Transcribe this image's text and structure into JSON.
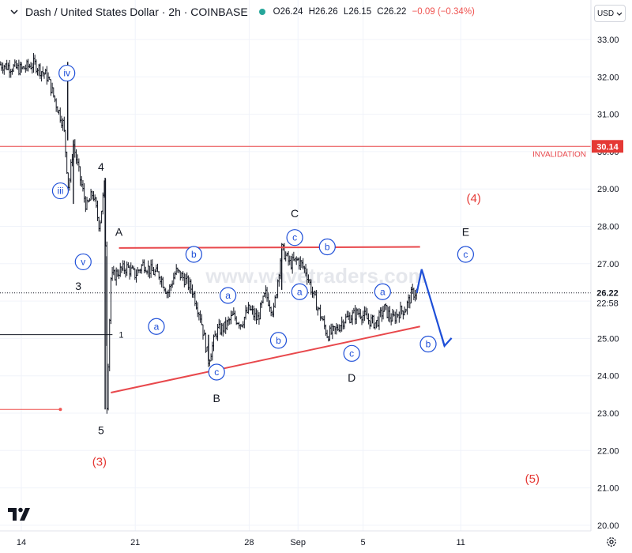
{
  "header": {
    "title": "Dash / United States Dollar · 2h · COINBASE",
    "open_label": "O",
    "open": "26.24",
    "high_label": "H",
    "high": "26.26",
    "low_label": "L",
    "low": "26.15",
    "close_label": "C",
    "close": "26.22",
    "change": "−0.09 (−0.34%)",
    "currency_button": "USD",
    "up_color": "#26a69a",
    "down_color": "#ef5350"
  },
  "watermark": "www.wavetraders.com",
  "icons": {
    "logo": "tradingview-logo-icon",
    "settings": "gear-icon",
    "currency": "chevron-down-icon"
  },
  "chart_data": {
    "type": "candlestick",
    "timeframe": "2h",
    "ylim": [
      20,
      33.5
    ],
    "y_ticks": [
      "33.00",
      "32.00",
      "31.00",
      "30.00",
      "29.00",
      "28.00",
      "27.00",
      "26.00",
      "25.00",
      "24.00",
      "23.00",
      "22.00",
      "21.00",
      "20.00"
    ],
    "x_ticks": [
      {
        "label": "14",
        "x": 0.0
      },
      {
        "label": "21",
        "x": 7.0
      },
      {
        "label": "28",
        "x": 14.0
      },
      {
        "label": "Sep",
        "x": 17.0
      },
      {
        "label": "5",
        "x": 21.0
      },
      {
        "label": "11",
        "x": 27.0
      }
    ],
    "price_path": [
      [
        -1.0,
        32.3
      ],
      [
        0.0,
        32.2
      ],
      [
        0.8,
        32.35
      ],
      [
        1.6,
        32.0
      ],
      [
        2.2,
        31.2
      ],
      [
        2.6,
        30.7
      ],
      [
        2.9,
        29.0
      ],
      [
        3.2,
        30.2
      ],
      [
        3.6,
        29.3
      ],
      [
        4.0,
        28.5
      ],
      [
        4.4,
        28.9
      ],
      [
        4.8,
        28.0
      ],
      [
        5.0,
        28.7
      ],
      [
        5.15,
        29.3
      ],
      [
        5.25,
        23.1
      ],
      [
        5.5,
        26.6
      ],
      [
        6.0,
        26.8
      ],
      [
        6.5,
        26.9
      ],
      [
        7.0,
        26.7
      ],
      [
        7.5,
        27.0
      ],
      [
        8.0,
        26.8
      ],
      [
        8.5,
        26.7
      ],
      [
        9.0,
        26.2
      ],
      [
        9.5,
        26.8
      ],
      [
        10.0,
        26.6
      ],
      [
        10.5,
        26.3
      ],
      [
        11.0,
        25.6
      ],
      [
        11.5,
        24.4
      ],
      [
        12.0,
        25.2
      ],
      [
        12.5,
        25.3
      ],
      [
        13.0,
        25.6
      ],
      [
        13.5,
        25.4
      ],
      [
        14.0,
        25.8
      ],
      [
        14.5,
        25.5
      ],
      [
        15.0,
        26.2
      ],
      [
        15.5,
        25.7
      ],
      [
        16.0,
        27.4
      ],
      [
        16.5,
        27.0
      ],
      [
        17.0,
        27.1
      ],
      [
        17.5,
        26.8
      ],
      [
        17.9,
        26.2
      ],
      [
        18.4,
        25.6
      ],
      [
        18.8,
        25.1
      ],
      [
        19.3,
        25.2
      ],
      [
        19.8,
        25.5
      ],
      [
        20.3,
        25.6
      ],
      [
        20.8,
        25.7
      ],
      [
        21.3,
        25.5
      ],
      [
        21.8,
        25.4
      ],
      [
        22.3,
        25.8
      ],
      [
        22.8,
        25.5
      ],
      [
        23.2,
        25.7
      ],
      [
        23.6,
        25.8
      ],
      [
        24.0,
        26.2
      ],
      [
        24.3,
        26.25
      ]
    ],
    "last_price": "26.22",
    "countdown": "22:58",
    "invalidation": {
      "price": 30.14,
      "label": "INVALIDATION",
      "value_label": "30.14"
    },
    "levels": [
      {
        "name": "level-1-line",
        "price": 25.1,
        "label": "1"
      },
      {
        "name": "low-level-line",
        "price": 23.1
      }
    ],
    "triangle_lines": [
      {
        "name": "upper-trendline",
        "from": [
          6.0,
          27.42
        ],
        "to": [
          24.5,
          27.45
        ]
      },
      {
        "name": "lower-trendline",
        "from": [
          5.5,
          23.55
        ],
        "to": [
          24.5,
          25.32
        ]
      }
    ],
    "forecast_arrow": {
      "from": [
        24.3,
        26.22
      ],
      "peak": [
        24.6,
        26.85
      ],
      "to": [
        26.0,
        24.8
      ]
    },
    "wave_labels": [
      {
        "text": "iv",
        "x": 2.8,
        "y": 32.1,
        "style": "circle"
      },
      {
        "text": "iii",
        "x": 2.4,
        "y": 28.95,
        "style": "circle"
      },
      {
        "text": "v",
        "x": 3.8,
        "y": 27.05,
        "style": "circle"
      },
      {
        "text": "4",
        "x": 4.9,
        "y": 29.6,
        "style": "plain-black"
      },
      {
        "text": "3",
        "x": 3.5,
        "y": 26.4,
        "style": "plain-black"
      },
      {
        "text": "5",
        "x": 4.9,
        "y": 22.55,
        "style": "plain-black"
      },
      {
        "text": "(3)",
        "x": 4.8,
        "y": 21.7,
        "style": "plain-red"
      },
      {
        "text": "A",
        "x": 6.0,
        "y": 27.85,
        "style": "plain-black"
      },
      {
        "text": "a",
        "x": 8.3,
        "y": 25.32,
        "style": "circle"
      },
      {
        "text": "b",
        "x": 10.6,
        "y": 27.25,
        "style": "circle"
      },
      {
        "text": "a",
        "x": 12.7,
        "y": 26.15,
        "style": "circle"
      },
      {
        "text": "c",
        "x": 12.0,
        "y": 24.1,
        "style": "circle"
      },
      {
        "text": "B",
        "x": 12.0,
        "y": 23.4,
        "style": "plain-black"
      },
      {
        "text": "b",
        "x": 15.8,
        "y": 24.95,
        "style": "circle"
      },
      {
        "text": "c",
        "x": 16.8,
        "y": 27.7,
        "style": "circle"
      },
      {
        "text": "C",
        "x": 16.8,
        "y": 28.35,
        "style": "plain-black"
      },
      {
        "text": "a",
        "x": 17.1,
        "y": 26.25,
        "style": "circle"
      },
      {
        "text": "b",
        "x": 18.8,
        "y": 27.45,
        "style": "circle"
      },
      {
        "text": "c",
        "x": 20.3,
        "y": 24.6,
        "style": "circle"
      },
      {
        "text": "D",
        "x": 20.3,
        "y": 23.95,
        "style": "plain-black"
      },
      {
        "text": "a",
        "x": 22.2,
        "y": 26.25,
        "style": "circle"
      },
      {
        "text": "b",
        "x": 25.0,
        "y": 24.85,
        "style": "circle"
      },
      {
        "text": "c",
        "x": 27.3,
        "y": 27.25,
        "style": "circle"
      },
      {
        "text": "E",
        "x": 27.3,
        "y": 27.85,
        "style": "plain-black"
      },
      {
        "text": "(4)",
        "x": 27.8,
        "y": 28.75,
        "style": "plain-red"
      },
      {
        "text": "(5)",
        "x": 31.4,
        "y": 21.25,
        "style": "plain-red"
      }
    ]
  }
}
